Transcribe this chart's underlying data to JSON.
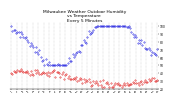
{
  "title": "Milwaukee Weather Outdoor Humidity\nvs Temperature\nEvery 5 Minutes",
  "title_fontsize": 3.2,
  "background_color": "#ffffff",
  "grid_color": "#aaaaaa",
  "blue_color": "#0000dd",
  "red_color": "#dd0000",
  "ylim": [
    20,
    105
  ],
  "yticks": [
    20,
    30,
    40,
    50,
    60,
    70,
    80,
    90,
    100
  ],
  "num_points": 120,
  "num_vlines": 28,
  "num_xticks": 28,
  "markersize": 0.6
}
